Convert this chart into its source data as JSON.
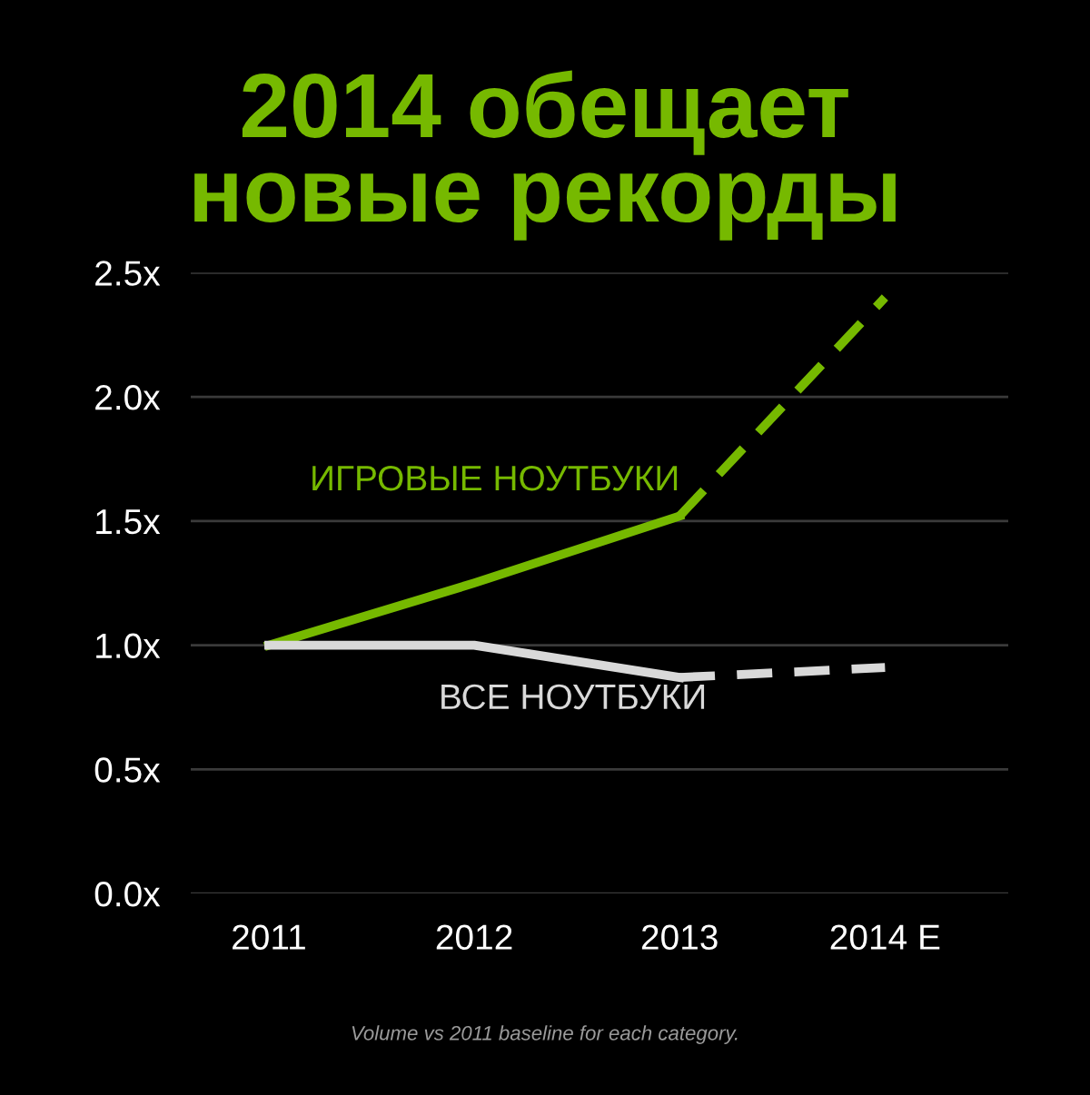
{
  "chart_data": {
    "type": "line",
    "title": "2014 обещает\nновые рекорды",
    "categories": [
      "2011",
      "2012",
      "2013",
      "2014 E"
    ],
    "series": [
      {
        "name": "ИГРОВЫЕ НОУТБУКИ",
        "color": "#76b900",
        "values": [
          1.0,
          1.25,
          1.52,
          null
        ],
        "line_style": "solid"
      },
      {
        "color": "#76b900",
        "values": [
          null,
          null,
          1.52,
          2.4
        ],
        "line_style": "dashed"
      },
      {
        "name": "ВСЕ НОУТБУКИ",
        "color": "#d9d9d9",
        "values": [
          1.0,
          1.0,
          0.87,
          null
        ],
        "line_style": "solid"
      },
      {
        "color": "#d9d9d9",
        "values": [
          null,
          null,
          0.87,
          0.91
        ],
        "line_style": "dashed"
      }
    ],
    "ylim": [
      0,
      2.5
    ],
    "yticks": [
      {
        "value": 0,
        "label": "0.0x"
      },
      {
        "value": 0.5,
        "label": "0.5x"
      },
      {
        "value": 1,
        "label": "1.0x"
      },
      {
        "value": 1.5,
        "label": "1.5x"
      },
      {
        "value": 2,
        "label": "2.0x"
      },
      {
        "value": 2.5,
        "label": "2.5x"
      }
    ],
    "grid": "y",
    "marker": "none",
    "legend": false,
    "annotations": [
      "Volume vs 2011 baseline for each category."
    ]
  }
}
